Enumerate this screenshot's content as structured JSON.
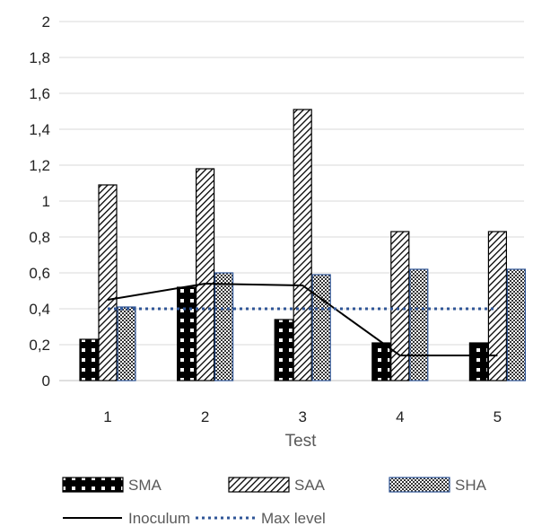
{
  "chart_data": {
    "type": "bar",
    "categories": [
      "1",
      "2",
      "3",
      "4",
      "5"
    ],
    "xlabel": "Test",
    "ylabel": "",
    "ylim": [
      0,
      2
    ],
    "yticks": [
      "0",
      "0,2",
      "0,4",
      "0,6",
      "0,8",
      "1",
      "1,2",
      "1,4",
      "1,6",
      "1,8",
      "2"
    ],
    "grid": true,
    "legend_position": "bottom",
    "series": [
      {
        "name": "SMA",
        "kind": "bar",
        "pattern": "black-dots",
        "color": "#000000",
        "values": [
          0.23,
          0.52,
          0.34,
          0.21,
          0.21
        ]
      },
      {
        "name": "SAA",
        "kind": "bar",
        "pattern": "diagonal-hatch",
        "color": "#000000",
        "values": [
          1.09,
          1.18,
          1.51,
          0.83,
          0.83
        ]
      },
      {
        "name": "SHA",
        "kind": "bar",
        "pattern": "crosshatch",
        "color": "#2e5597",
        "values": [
          0.41,
          0.6,
          0.59,
          0.62,
          0.62
        ]
      },
      {
        "name": "Inoculum",
        "kind": "line",
        "style": "solid",
        "color": "#000000",
        "values": [
          0.45,
          0.54,
          0.53,
          0.14,
          0.14
        ]
      },
      {
        "name": "Max level",
        "kind": "line",
        "style": "dotted",
        "color": "#2f5597",
        "values": [
          0.4,
          0.4,
          0.4,
          0.4,
          0.4
        ]
      }
    ]
  }
}
